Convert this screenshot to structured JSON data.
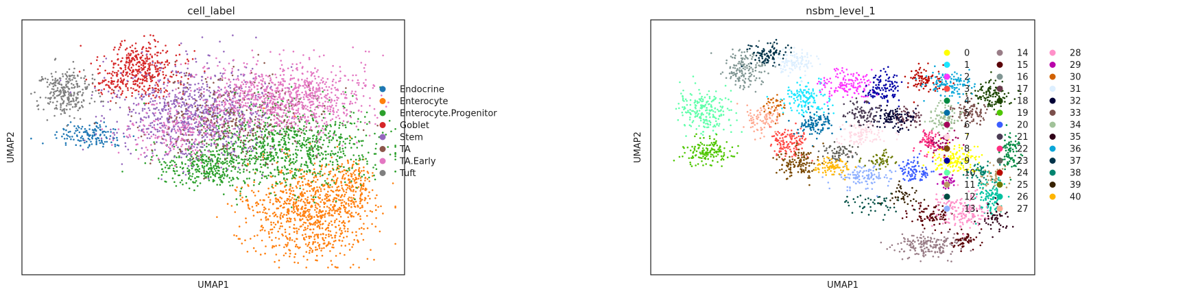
{
  "chart_data": [
    {
      "type": "scatter",
      "title": "cell_label",
      "xlabel": "UMAP1",
      "ylabel": "UMAP2",
      "xticks": [],
      "yticks": [],
      "grid": false,
      "legend_position": "right",
      "legend_columns": 1,
      "categories": [
        "Endocrine",
        "Enterocyte",
        "Enterocyte.Progenitor",
        "Goblet",
        "Stem",
        "TA",
        "TA.Early",
        "Tuft"
      ],
      "colors": [
        "#1f77b4",
        "#ff7f0e",
        "#2ca02c",
        "#d62728",
        "#9467bd",
        "#8c564b",
        "#e377c2",
        "#7f7f7f"
      ],
      "clusters": [
        {
          "category": "Endocrine",
          "blobs": [
            [
              0.17,
              0.45,
              0.1,
              0.06,
              140
            ]
          ]
        },
        {
          "category": "Enterocyte",
          "blobs": [
            [
              0.76,
              0.76,
              0.16,
              0.2,
              900
            ],
            [
              0.88,
              0.66,
              0.06,
              0.1,
              150
            ]
          ]
        },
        {
          "category": "Enterocyte.Progenitor",
          "blobs": [
            [
              0.7,
              0.5,
              0.24,
              0.17,
              900
            ],
            [
              0.48,
              0.58,
              0.14,
              0.08,
              300
            ]
          ]
        },
        {
          "category": "Goblet",
          "blobs": [
            [
              0.31,
              0.18,
              0.11,
              0.11,
              380
            ],
            [
              0.23,
              0.24,
              0.05,
              0.04,
              60
            ]
          ]
        },
        {
          "category": "Stem",
          "blobs": [
            [
              0.45,
              0.36,
              0.2,
              0.18,
              900
            ]
          ]
        },
        {
          "category": "TA",
          "blobs": [
            [
              0.55,
              0.38,
              0.24,
              0.18,
              350
            ]
          ]
        },
        {
          "category": "TA.Early",
          "blobs": [
            [
              0.7,
              0.3,
              0.22,
              0.14,
              900
            ],
            [
              0.4,
              0.44,
              0.14,
              0.12,
              200
            ]
          ]
        },
        {
          "category": "Tuft",
          "blobs": [
            [
              0.1,
              0.28,
              0.07,
              0.09,
              260
            ]
          ]
        }
      ]
    },
    {
      "type": "scatter",
      "title": "nsbm_level_1",
      "xlabel": "UMAP1",
      "ylabel": "UMAP2",
      "xticks": [],
      "yticks": [],
      "grid": false,
      "legend_position": "right",
      "legend_columns": 3,
      "categories": [
        "0",
        "1",
        "2",
        "3",
        "4",
        "5",
        "6",
        "7",
        "8",
        "9",
        "10",
        "11",
        "12",
        "13",
        "14",
        "15",
        "16",
        "17",
        "18",
        "19",
        "20",
        "21",
        "22",
        "23",
        "24",
        "25",
        "26",
        "27",
        "28",
        "29",
        "30",
        "31",
        "32",
        "33",
        "34",
        "35",
        "36",
        "37",
        "38",
        "39",
        "40"
      ],
      "colors": [
        "#ffff00",
        "#1ce6ff",
        "#ff34ff",
        "#ff4a46",
        "#008941",
        "#006fa6",
        "#a30059",
        "#ffdbe5",
        "#7a4900",
        "#0000a6",
        "#63ffac",
        "#b79762",
        "#004d43",
        "#8fb0ff",
        "#997d87",
        "#5a0007",
        "#809693",
        "#6a3a4c",
        "#1b4400",
        "#4fc601",
        "#3b5dff",
        "#4a3b53",
        "#ff2f80",
        "#61615a",
        "#ba0900",
        "#6b7900",
        "#00c2a0",
        "#ffaa92",
        "#ff90c9",
        "#b903aa",
        "#d16100",
        "#ddefff",
        "#000035",
        "#7b4f4b",
        "#a1c299",
        "#300018",
        "#0aa6d8",
        "#013349",
        "#00846f",
        "#372101",
        "#ffb500"
      ],
      "clusters": [
        {
          "category": "0",
          "blobs": [
            [
              0.8,
              0.55,
              0.07,
              0.06,
              160
            ]
          ]
        },
        {
          "category": "1",
          "blobs": [
            [
              0.4,
              0.3,
              0.07,
              0.07,
              140
            ]
          ]
        },
        {
          "category": "2",
          "blobs": [
            [
              0.51,
              0.24,
              0.07,
              0.06,
              140
            ]
          ]
        },
        {
          "category": "3",
          "blobs": [
            [
              0.36,
              0.48,
              0.05,
              0.07,
              130
            ]
          ]
        },
        {
          "category": "4",
          "blobs": [
            [
              0.95,
              0.52,
              0.03,
              0.08,
              90
            ]
          ]
        },
        {
          "category": "5",
          "blobs": [
            [
              0.43,
              0.4,
              0.05,
              0.05,
              110
            ]
          ]
        },
        {
          "category": "6",
          "blobs": [
            [
              0.76,
              0.48,
              0.04,
              0.04,
              60
            ]
          ]
        },
        {
          "category": "7",
          "blobs": [
            [
              0.55,
              0.45,
              0.06,
              0.05,
              110
            ]
          ]
        },
        {
          "category": "8",
          "blobs": [
            [
              0.38,
              0.57,
              0.05,
              0.06,
              130
            ]
          ]
        },
        {
          "category": "9",
          "blobs": [
            [
              0.61,
              0.25,
              0.05,
              0.06,
              120
            ]
          ]
        },
        {
          "category": "10",
          "blobs": [
            [
              0.13,
              0.35,
              0.07,
              0.09,
              220
            ]
          ]
        },
        {
          "category": "11",
          "blobs": [
            [
              0.9,
              0.62,
              0.03,
              0.05,
              50
            ]
          ]
        },
        {
          "category": "12",
          "blobs": [
            [
              0.58,
              0.74,
              0.08,
              0.05,
              50
            ]
          ]
        },
        {
          "category": "13",
          "blobs": [
            [
              0.56,
              0.62,
              0.07,
              0.05,
              120
            ]
          ]
        },
        {
          "category": "14",
          "blobs": [
            [
              0.73,
              0.9,
              0.09,
              0.05,
              180
            ]
          ]
        },
        {
          "category": "15",
          "blobs": [
            [
              0.74,
              0.78,
              0.06,
              0.05,
              90
            ],
            [
              0.83,
              0.88,
              0.04,
              0.04,
              50
            ]
          ]
        },
        {
          "category": "16",
          "blobs": [
            [
              0.24,
              0.18,
              0.06,
              0.08,
              160
            ]
          ]
        },
        {
          "category": "17",
          "blobs": [
            [
              0.68,
              0.38,
              0.04,
              0.04,
              60
            ]
          ]
        },
        {
          "category": "18",
          "blobs": [
            [
              0.9,
              0.28,
              0.05,
              0.06,
              110
            ]
          ]
        },
        {
          "category": "19",
          "blobs": [
            [
              0.14,
              0.52,
              0.07,
              0.06,
              140
            ]
          ]
        },
        {
          "category": "20",
          "blobs": [
            [
              0.69,
              0.6,
              0.04,
              0.05,
              90
            ]
          ]
        },
        {
          "category": "21",
          "blobs": [
            [
              0.55,
              0.36,
              0.05,
              0.05,
              90
            ]
          ]
        },
        {
          "category": "22",
          "blobs": [
            [
              0.73,
              0.48,
              0.03,
              0.05,
              60
            ]
          ]
        },
        {
          "category": "23",
          "blobs": [
            [
              0.49,
              0.52,
              0.05,
              0.04,
              70
            ]
          ]
        },
        {
          "category": "24",
          "blobs": [
            [
              0.72,
              0.22,
              0.05,
              0.05,
              90
            ]
          ]
        },
        {
          "category": "25",
          "blobs": [
            [
              0.6,
              0.55,
              0.04,
              0.04,
              50
            ]
          ]
        },
        {
          "category": "26",
          "blobs": [
            [
              0.9,
              0.7,
              0.04,
              0.07,
              110
            ]
          ]
        },
        {
          "category": "27",
          "blobs": [
            [
              0.29,
              0.38,
              0.05,
              0.06,
              90
            ]
          ]
        },
        {
          "category": "28",
          "blobs": [
            [
              0.82,
              0.76,
              0.07,
              0.07,
              160
            ]
          ]
        },
        {
          "category": "29",
          "blobs": [
            [
              0.78,
              0.64,
              0.03,
              0.03,
              40
            ]
          ]
        },
        {
          "category": "30",
          "blobs": [
            [
              0.32,
              0.34,
              0.03,
              0.04,
              40
            ]
          ]
        },
        {
          "category": "31",
          "blobs": [
            [
              0.37,
              0.15,
              0.05,
              0.05,
              110
            ]
          ]
        },
        {
          "category": "32",
          "blobs": [
            [
              0.64,
              0.38,
              0.05,
              0.05,
              100
            ]
          ]
        },
        {
          "category": "33",
          "blobs": [
            [
              0.84,
              0.36,
              0.05,
              0.05,
              100
            ]
          ]
        },
        {
          "category": "34",
          "blobs": [
            [
              0.77,
              0.38,
              0.04,
              0.05,
              90
            ]
          ]
        },
        {
          "category": "35",
          "blobs": [
            [
              0.91,
              0.8,
              0.04,
              0.06,
              50
            ]
          ]
        },
        {
          "category": "36",
          "blobs": [
            [
              0.79,
              0.24,
              0.06,
              0.06,
              130
            ]
          ]
        },
        {
          "category": "37",
          "blobs": [
            [
              0.3,
              0.12,
              0.05,
              0.05,
              90
            ]
          ]
        },
        {
          "category": "38",
          "blobs": [
            [
              0.87,
              0.6,
              0.04,
              0.04,
              50
            ]
          ]
        },
        {
          "category": "39",
          "blobs": [
            [
              0.66,
              0.7,
              0.04,
              0.04,
              40
            ]
          ]
        },
        {
          "category": "40",
          "blobs": [
            [
              0.47,
              0.58,
              0.05,
              0.04,
              80
            ]
          ]
        }
      ]
    }
  ]
}
